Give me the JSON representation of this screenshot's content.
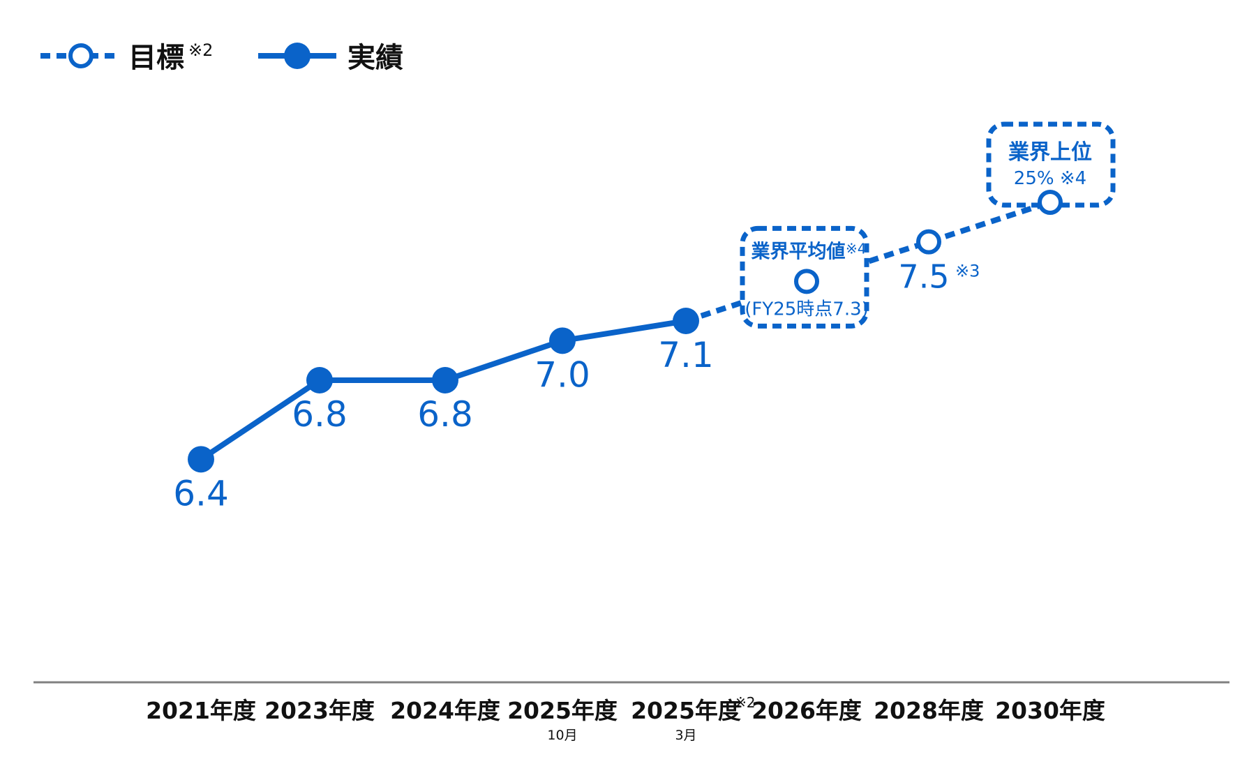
{
  "colors": {
    "accent": "#0a63c9",
    "axis": "#808080",
    "text": "#111111",
    "background": "#ffffff"
  },
  "legend": {
    "target_label": "目標",
    "target_note": "※2",
    "actual_label": "実績"
  },
  "chart_data": {
    "type": "line",
    "title": "",
    "xlabel": "",
    "ylabel": "",
    "categories": [
      {
        "label": "2021年度",
        "note": "",
        "sub": ""
      },
      {
        "label": "2023年度",
        "note": "",
        "sub": ""
      },
      {
        "label": "2024年度",
        "note": "",
        "sub": ""
      },
      {
        "label": "2025年度",
        "note": "",
        "sub": "10月"
      },
      {
        "label": "2025年度",
        "note": "※2",
        "sub": "3月"
      },
      {
        "label": "2026年度",
        "note": "",
        "sub": ""
      },
      {
        "label": "2028年度",
        "note": "",
        "sub": ""
      },
      {
        "label": "2030年度",
        "note": "",
        "sub": ""
      }
    ],
    "series": [
      {
        "name": "実績",
        "style": "solid-filled",
        "values": [
          6.4,
          6.8,
          6.8,
          7.0,
          7.1,
          null,
          null,
          null
        ],
        "labels": [
          "6.4",
          "6.8",
          "6.8",
          "7.0",
          "7.1",
          "",
          "",
          ""
        ]
      },
      {
        "name": "目標",
        "style": "dashed-hollow",
        "values": [
          null,
          null,
          null,
          null,
          7.1,
          7.3,
          7.5,
          7.7
        ]
      }
    ],
    "ylim": [
      5.3,
      8.3
    ],
    "grid": false,
    "legend_position": "top-left",
    "annotations": [
      {
        "type": "value-label",
        "category_index": 6,
        "text": "7.5",
        "note": "※3"
      },
      {
        "type": "callout-box",
        "category_index": 5,
        "line1": "業界平均値",
        "line1_note": "※4",
        "line2": "(FY25時点7.3)"
      },
      {
        "type": "callout-box",
        "category_index": 7,
        "line1": "業界上位",
        "line2": "25% ※4"
      }
    ]
  }
}
